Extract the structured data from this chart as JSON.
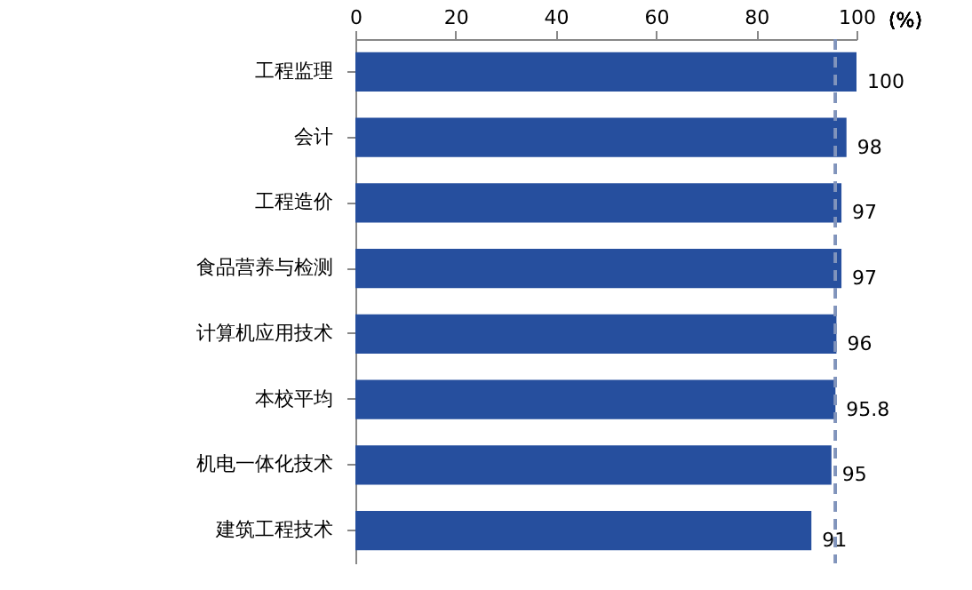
{
  "chart_data": {
    "type": "bar",
    "orientation": "horizontal",
    "xlabel": "(%)",
    "categories": [
      "工程监理",
      "会计",
      "工程造价",
      "食品营养与检测",
      "计算机应用技术",
      "本校平均",
      "机电一体化技术",
      "建筑工程技术"
    ],
    "values": [
      100,
      98,
      97,
      97,
      96,
      95.8,
      95,
      91
    ],
    "colors": [
      "#264f9e",
      "#264f9e",
      "#264f9e",
      "#264f9e",
      "#264f9e",
      "#264f9e",
      "#264f9e",
      "#264f9e"
    ],
    "xlim": [
      0,
      100
    ],
    "xticks": [
      0,
      20,
      40,
      60,
      80,
      100
    ],
    "ref_lines": [
      {
        "axis": "x",
        "value": 95.8,
        "color": "#8094bc",
        "line_style": "dashed"
      }
    ],
    "data_labels": true,
    "grid": false
  }
}
